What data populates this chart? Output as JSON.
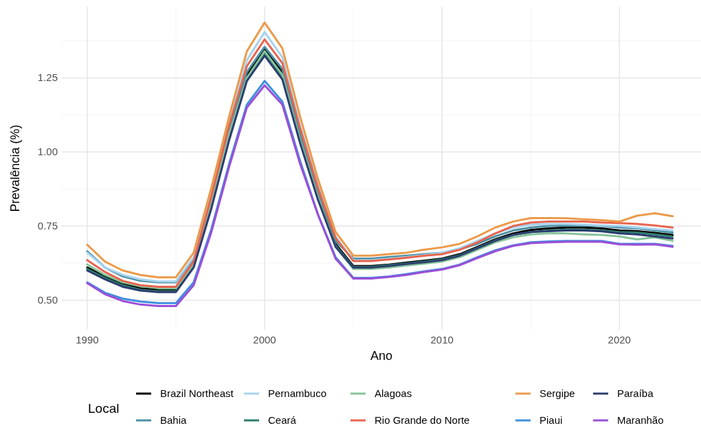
{
  "chart_data": {
    "type": "line",
    "xlabel": "Ano",
    "ylabel": "Prevalência (%)",
    "legend_title": "Local",
    "legend": "bottom",
    "grid": true,
    "line_style": "solid",
    "xlim": [
      1988.57,
      2024.6
    ],
    "xticks": [
      1990,
      2000,
      2010,
      2020
    ],
    "ylim": [
      0.4,
      1.49
    ],
    "yticks": [
      {
        "value": 0.5,
        "label": "0.50"
      },
      {
        "value": 0.75,
        "label": "0.75"
      },
      {
        "value": 1,
        "label": "1.00"
      },
      {
        "value": 1.25,
        "label": "1.25"
      }
    ],
    "x": [
      1990,
      1991,
      1992,
      1993,
      1994,
      1995,
      1996,
      1997,
      1998,
      1999,
      2000,
      2001,
      2002,
      2003,
      2004,
      2005,
      2006,
      2007,
      2008,
      2009,
      2010,
      2011,
      2012,
      2013,
      2014,
      2015,
      2016,
      2017,
      2018,
      2019,
      2020,
      2021,
      2022,
      2023
    ],
    "series": [
      {
        "name": "Brazil Northeast",
        "color": "#000000",
        "values": [
          0.61,
          0.58,
          0.555,
          0.54,
          0.535,
          0.535,
          0.62,
          0.83,
          1.06,
          1.26,
          1.35,
          1.27,
          1.05,
          0.86,
          0.69,
          0.615,
          0.615,
          0.62,
          0.627,
          0.633,
          0.64,
          0.655,
          0.68,
          0.705,
          0.725,
          0.737,
          0.742,
          0.745,
          0.745,
          0.742,
          0.735,
          0.733,
          0.727,
          0.72
        ]
      },
      {
        "name": "Bahia",
        "color": "#4a8fa3",
        "values": [
          0.665,
          0.61,
          0.58,
          0.565,
          0.56,
          0.56,
          0.64,
          0.85,
          1.08,
          1.27,
          1.355,
          1.28,
          1.06,
          0.86,
          0.7,
          0.64,
          0.64,
          0.645,
          0.65,
          0.655,
          0.66,
          0.672,
          0.69,
          0.715,
          0.735,
          0.745,
          0.75,
          0.752,
          0.752,
          0.75,
          0.745,
          0.742,
          0.735,
          0.728
        ]
      },
      {
        "name": "Pernambuco",
        "color": "#a6d3ee",
        "values": [
          0.66,
          0.61,
          0.585,
          0.57,
          0.563,
          0.563,
          0.645,
          0.86,
          1.1,
          1.31,
          1.405,
          1.32,
          1.09,
          0.89,
          0.715,
          0.635,
          0.635,
          0.64,
          0.645,
          0.652,
          0.66,
          0.675,
          0.7,
          0.725,
          0.745,
          0.755,
          0.757,
          0.757,
          0.755,
          0.752,
          0.75,
          0.745,
          0.74,
          0.735
        ]
      },
      {
        "name": "Ceará",
        "color": "#2e7d6b",
        "values": [
          0.605,
          0.575,
          0.55,
          0.535,
          0.53,
          0.53,
          0.615,
          0.82,
          1.05,
          1.25,
          1.335,
          1.255,
          1.04,
          0.85,
          0.685,
          0.612,
          0.612,
          0.618,
          0.624,
          0.63,
          0.638,
          0.652,
          0.677,
          0.702,
          0.72,
          0.73,
          0.735,
          0.738,
          0.738,
          0.735,
          0.73,
          0.728,
          0.722,
          0.715
        ]
      },
      {
        "name": "Alagoas",
        "color": "#86c49a",
        "values": [
          0.62,
          0.585,
          0.56,
          0.547,
          0.54,
          0.54,
          0.62,
          0.83,
          1.06,
          1.25,
          1.34,
          1.26,
          1.04,
          0.85,
          0.68,
          0.605,
          0.605,
          0.61,
          0.617,
          0.623,
          0.63,
          0.645,
          0.67,
          0.695,
          0.712,
          0.722,
          0.725,
          0.725,
          0.722,
          0.72,
          0.715,
          0.705,
          0.712,
          0.7
        ]
      },
      {
        "name": "Rio Grande do Norte",
        "color": "#e8654f",
        "values": [
          0.635,
          0.595,
          0.565,
          0.55,
          0.545,
          0.545,
          0.63,
          0.85,
          1.09,
          1.29,
          1.38,
          1.3,
          1.08,
          0.88,
          0.71,
          0.632,
          0.632,
          0.637,
          0.643,
          0.65,
          0.655,
          0.67,
          0.695,
          0.725,
          0.75,
          0.762,
          0.765,
          0.765,
          0.765,
          0.762,
          0.76,
          0.757,
          0.752,
          0.745
        ]
      },
      {
        "name": "Sergipe",
        "color": "#ec9a4a",
        "values": [
          0.687,
          0.63,
          0.6,
          0.585,
          0.577,
          0.577,
          0.66,
          0.88,
          1.12,
          1.34,
          1.437,
          1.35,
          1.12,
          0.91,
          0.73,
          0.65,
          0.65,
          0.655,
          0.66,
          0.67,
          0.678,
          0.69,
          0.715,
          0.745,
          0.765,
          0.777,
          0.777,
          0.776,
          0.773,
          0.77,
          0.765,
          0.785,
          0.793,
          0.783
        ]
      },
      {
        "name": "Piaui",
        "color": "#3f8ee0",
        "values": [
          0.56,
          0.525,
          0.505,
          0.495,
          0.49,
          0.49,
          0.56,
          0.74,
          0.96,
          1.16,
          1.24,
          1.17,
          0.97,
          0.79,
          0.645,
          0.575,
          0.575,
          0.58,
          0.588,
          0.597,
          0.605,
          0.62,
          0.645,
          0.668,
          0.685,
          0.695,
          0.698,
          0.7,
          0.7,
          0.7,
          0.69,
          0.69,
          0.69,
          0.683
        ]
      },
      {
        "name": "Paraíba",
        "color": "#2c3e70",
        "values": [
          0.6,
          0.57,
          0.545,
          0.532,
          0.527,
          0.527,
          0.61,
          0.81,
          1.04,
          1.24,
          1.325,
          1.245,
          1.03,
          0.84,
          0.68,
          0.61,
          0.61,
          0.615,
          0.622,
          0.628,
          0.635,
          0.65,
          0.675,
          0.7,
          0.72,
          0.73,
          0.733,
          0.735,
          0.735,
          0.732,
          0.725,
          0.722,
          0.715,
          0.708
        ]
      },
      {
        "name": "Maranhão",
        "color": "#9b4fd6",
        "values": [
          0.557,
          0.52,
          0.497,
          0.485,
          0.48,
          0.48,
          0.55,
          0.73,
          0.95,
          1.15,
          1.225,
          1.16,
          0.96,
          0.79,
          0.64,
          0.573,
          0.573,
          0.578,
          0.585,
          0.595,
          0.603,
          0.618,
          0.642,
          0.665,
          0.683,
          0.692,
          0.695,
          0.697,
          0.697,
          0.697,
          0.688,
          0.687,
          0.688,
          0.68
        ]
      }
    ]
  }
}
